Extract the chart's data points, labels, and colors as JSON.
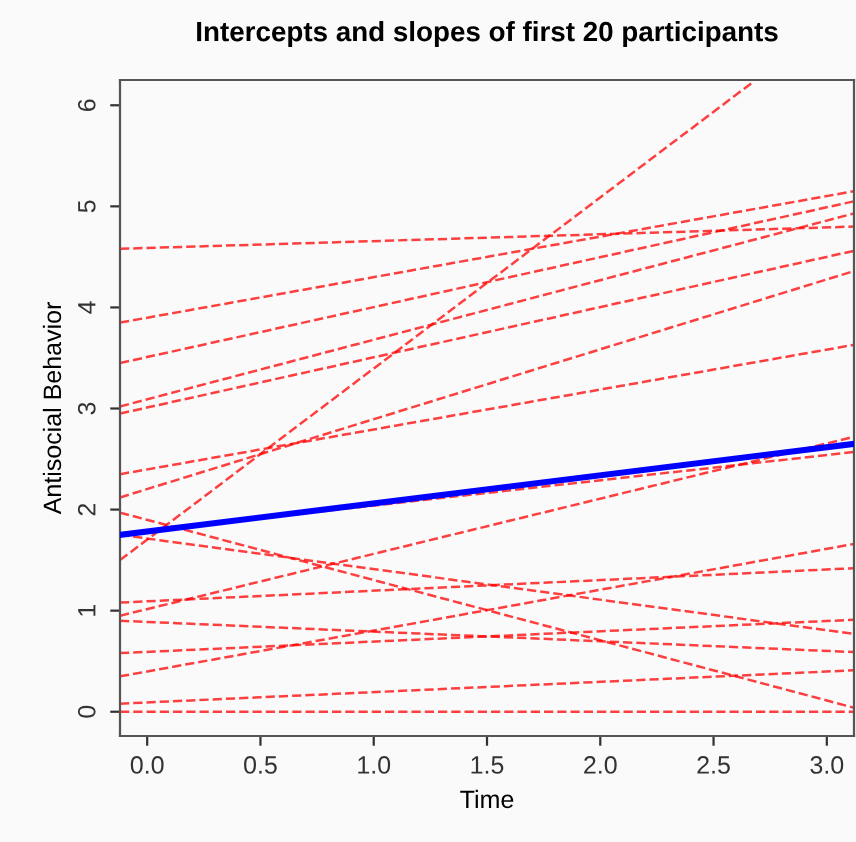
{
  "chart_data": {
    "type": "line",
    "title": "Intercepts and slopes of first 20 participants",
    "xlabel": "Time",
    "ylabel": "Antisocial Behavior",
    "x": [
      -0.12,
      3.12
    ],
    "series": [
      {
        "color": "#ff0000",
        "line_style": "dashed",
        "values": [
          4.58,
          4.8
        ]
      },
      {
        "color": "#ff0000",
        "line_style": "dashed",
        "values": [
          3.85,
          5.15
        ]
      },
      {
        "color": "#ff0000",
        "line_style": "dashed",
        "values": [
          3.45,
          5.05
        ]
      },
      {
        "color": "#ff0000",
        "line_style": "dashed",
        "values": [
          3.02,
          4.93
        ]
      },
      {
        "color": "#ff0000",
        "line_style": "dashed",
        "values": [
          2.95,
          4.56
        ]
      },
      {
        "color": "#ff0000",
        "line_style": "dashed",
        "values": [
          2.12,
          4.36
        ]
      },
      {
        "color": "#ff0000",
        "line_style": "dashed",
        "values": [
          2.35,
          3.63
        ]
      },
      {
        "color": "#ff0000",
        "line_style": "dashed",
        "x": [
          -0.12,
          2.68
        ],
        "values": [
          1.5,
          6.24
        ]
      },
      {
        "color": "#ff0000",
        "line_style": "dashed",
        "values": [
          1.97,
          0.04
        ]
      },
      {
        "color": "#ff0000",
        "line_style": "dashed",
        "values": [
          1.75,
          0.77
        ]
      },
      {
        "color": "#ff0000",
        "line_style": "dashed",
        "values": [
          1.76,
          2.57
        ]
      },
      {
        "color": "#ff0000",
        "line_style": "dashed",
        "values": [
          1.08,
          1.42
        ]
      },
      {
        "color": "#ff0000",
        "line_style": "dashed",
        "values": [
          0.95,
          2.72
        ]
      },
      {
        "color": "#ff0000",
        "line_style": "dashed",
        "values": [
          0.35,
          1.66
        ]
      },
      {
        "color": "#ff0000",
        "line_style": "dashed",
        "values": [
          0.9,
          0.59
        ]
      },
      {
        "color": "#ff0000",
        "line_style": "dashed",
        "values": [
          0.58,
          0.91
        ]
      },
      {
        "color": "#ff0000",
        "line_style": "dashed",
        "values": [
          0.08,
          0.41
        ]
      },
      {
        "color": "#ff0000",
        "line_style": "dashed",
        "values": [
          0.0,
          0.0
        ]
      },
      {
        "color": "#0000ff",
        "line_style": "solid",
        "values": [
          1.75,
          2.65
        ]
      }
    ],
    "xlim": [
      -0.12,
      3.12
    ],
    "ylim": [
      -0.24,
      6.25
    ],
    "xticks": [
      {
        "value": 0,
        "label": "0.0"
      },
      0.5,
      {
        "value": 1,
        "label": "1.0"
      },
      1.5,
      {
        "value": 2,
        "label": "2.0"
      },
      2.5,
      {
        "value": 3,
        "label": "3.0"
      }
    ],
    "yticks": [
      0,
      1,
      2,
      3,
      4,
      5,
      6
    ],
    "grid": false,
    "legend": false,
    "marker": "none"
  }
}
